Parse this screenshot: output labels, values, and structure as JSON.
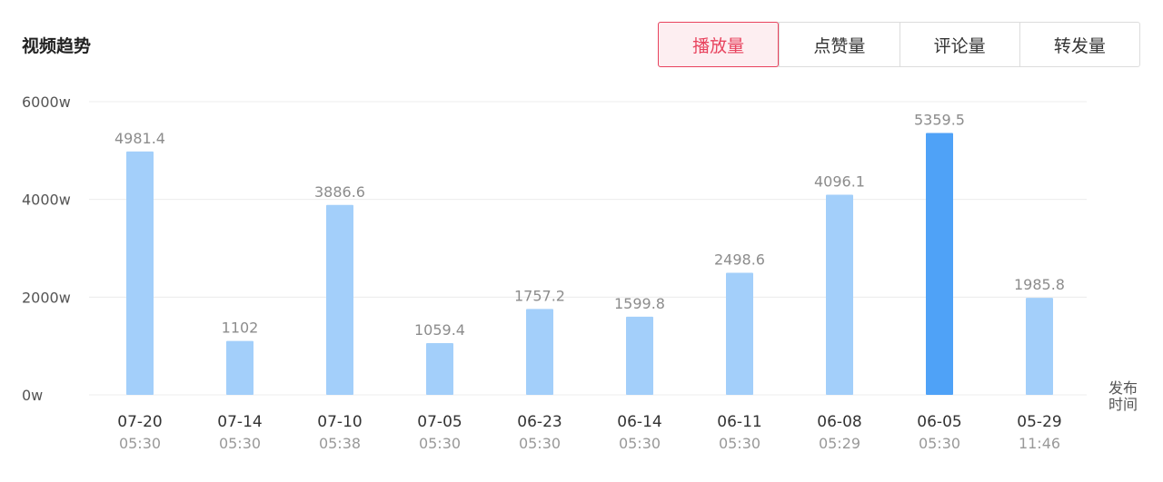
{
  "header": {
    "title": "视频趋势",
    "tabs": [
      {
        "label": "播放量",
        "active": true
      },
      {
        "label": "点赞量",
        "active": false
      },
      {
        "label": "评论量",
        "active": false
      },
      {
        "label": "转发量",
        "active": false
      }
    ]
  },
  "colors": {
    "bar": "#a3cffa",
    "bar_highlight": "#4fa2f7",
    "grid": "#ececec",
    "tick": "#555555",
    "value_label": "#8c8c8c",
    "date_label": "#333333",
    "time_label": "#999999",
    "accent": "#e8435e"
  },
  "chart_data": {
    "type": "bar",
    "categories": [
      "07-20",
      "07-14",
      "07-10",
      "07-05",
      "06-23",
      "06-14",
      "06-11",
      "06-08",
      "06-05",
      "05-29"
    ],
    "times": [
      "05:30",
      "05:30",
      "05:38",
      "05:30",
      "05:30",
      "05:30",
      "05:30",
      "05:29",
      "05:30",
      "11:46"
    ],
    "values": [
      4981.4,
      1102,
      3886.6,
      1059.4,
      1757.2,
      1599.8,
      2498.6,
      4096.1,
      5359.5,
      1985.8
    ],
    "value_labels": [
      "4981.4",
      "1102",
      "3886.6",
      "1059.4",
      "1757.2",
      "1599.8",
      "2498.6",
      "4096.1",
      "5359.5",
      "1985.8"
    ],
    "highlight_index": 8,
    "ylim": [
      0,
      6000
    ],
    "yticks": [
      0,
      2000,
      4000,
      6000
    ],
    "ytick_labels": [
      "0w",
      "2000w",
      "4000w",
      "6000w"
    ],
    "xlabel_lines": [
      "发布",
      "时间"
    ],
    "grid": true
  }
}
